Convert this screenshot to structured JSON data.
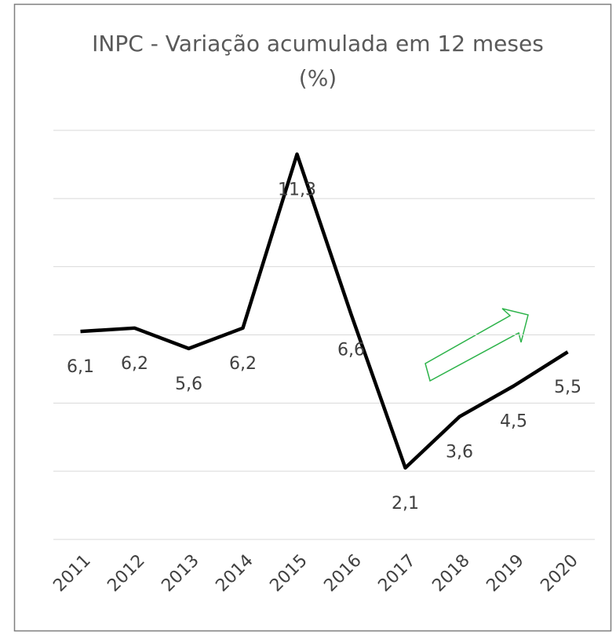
{
  "chart_data": {
    "type": "line",
    "title": "INPC - Variação acumulada em 12 meses (%)",
    "categories": [
      "2011",
      "2012",
      "2013",
      "2014",
      "2015",
      "2016",
      "2017",
      "2018",
      "2019",
      "2020"
    ],
    "values": [
      6.1,
      6.2,
      5.6,
      6.2,
      11.3,
      6.6,
      2.1,
      3.6,
      4.5,
      5.5
    ],
    "value_labels": [
      "6,1",
      "6,2",
      "5,6",
      "6,2",
      "11,3",
      "6,6",
      "2,1",
      "3,6",
      "4,5",
      "5,5"
    ],
    "color": "#000000",
    "ylim": [
      0,
      12
    ],
    "yticks": [
      0,
      2,
      4,
      6,
      8,
      10,
      12
    ],
    "grid": true
  }
}
